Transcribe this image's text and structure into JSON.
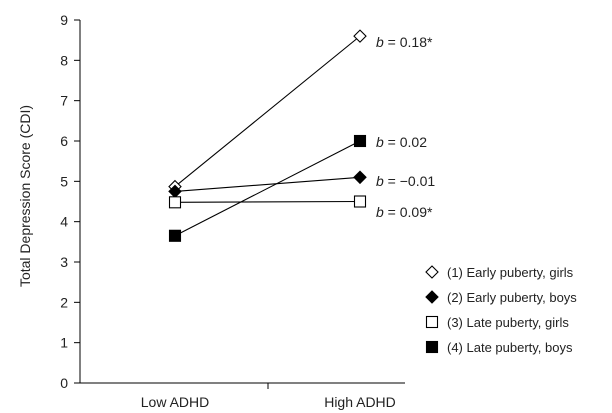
{
  "chart_data": {
    "type": "line",
    "title": "",
    "xlabel": "",
    "ylabel": "Total Depression Score (CDI)",
    "categories": [
      "Low ADHD",
      "High ADHD"
    ],
    "ylim": [
      0,
      9
    ],
    "yticks": [
      0,
      1,
      2,
      3,
      4,
      5,
      6,
      7,
      8,
      9
    ],
    "grid": false,
    "legend_position": "right",
    "series": [
      {
        "name": "(1) Early puberty, girls",
        "marker": "open-diamond",
        "values": [
          4.87,
          8.6
        ],
        "annotation": {
          "prefix": "b",
          "text": " = 0.18*"
        }
      },
      {
        "name": "(2) Early puberty, boys",
        "marker": "filled-diamond",
        "values": [
          4.75,
          5.1
        ],
        "annotation": {
          "prefix": "b",
          "text": " = 0.02"
        }
      },
      {
        "name": "(3) Late puberty, girls",
        "marker": "open-square",
        "values": [
          4.48,
          4.5
        ],
        "annotation": {
          "prefix": "b",
          "text": " = −0.01"
        }
      },
      {
        "name": "(4) Late puberty, boys",
        "marker": "filled-square",
        "values": [
          3.65,
          6.0
        ],
        "annotation": {
          "prefix": "b",
          "text": " = 0.09*"
        }
      }
    ]
  }
}
